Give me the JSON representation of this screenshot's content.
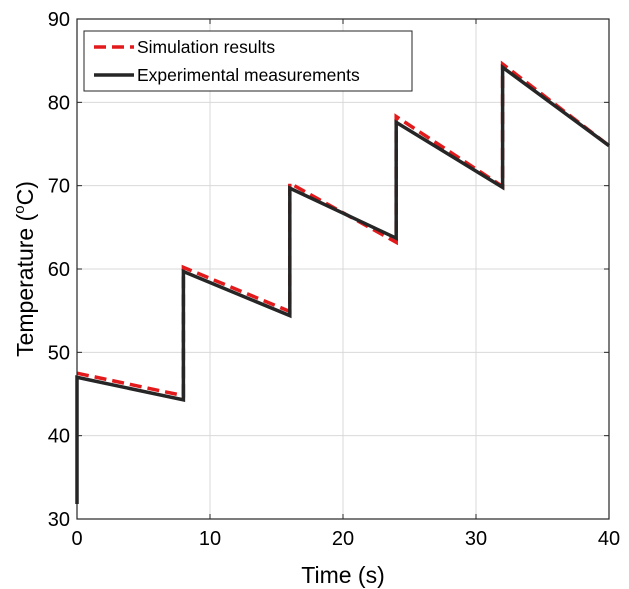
{
  "chart_data": {
    "type": "line",
    "title": "",
    "xlabel": "Time (s)",
    "ylabel_main": "Temperature (",
    "ylabel_sup": "o",
    "ylabel_unit": "C)",
    "xlim": [
      0,
      40
    ],
    "ylim": [
      30,
      90
    ],
    "xticks": [
      0,
      10,
      20,
      30,
      40
    ],
    "yticks": [
      30,
      40,
      50,
      60,
      70,
      80,
      90
    ],
    "grid": true,
    "legend_position": "top-left",
    "series": [
      {
        "name": "Simulation results",
        "color": "#e31a1c",
        "style": "dashed",
        "x": [
          0,
          0,
          8,
          8,
          16,
          16,
          24,
          24,
          32,
          32,
          40
        ],
        "y": [
          47.5,
          47.5,
          44.8,
          60.2,
          54.9,
          70.3,
          63.2,
          78.3,
          69.9,
          84.6,
          74.8
        ]
      },
      {
        "name": "Experimental measurements",
        "color": "#262626",
        "style": "solid",
        "x": [
          0,
          0,
          8,
          8,
          16,
          16,
          24,
          24,
          32,
          32,
          40
        ],
        "y": [
          31.8,
          47.0,
          44.3,
          59.7,
          54.4,
          69.7,
          63.7,
          77.6,
          69.8,
          84.2,
          74.8
        ]
      }
    ]
  }
}
